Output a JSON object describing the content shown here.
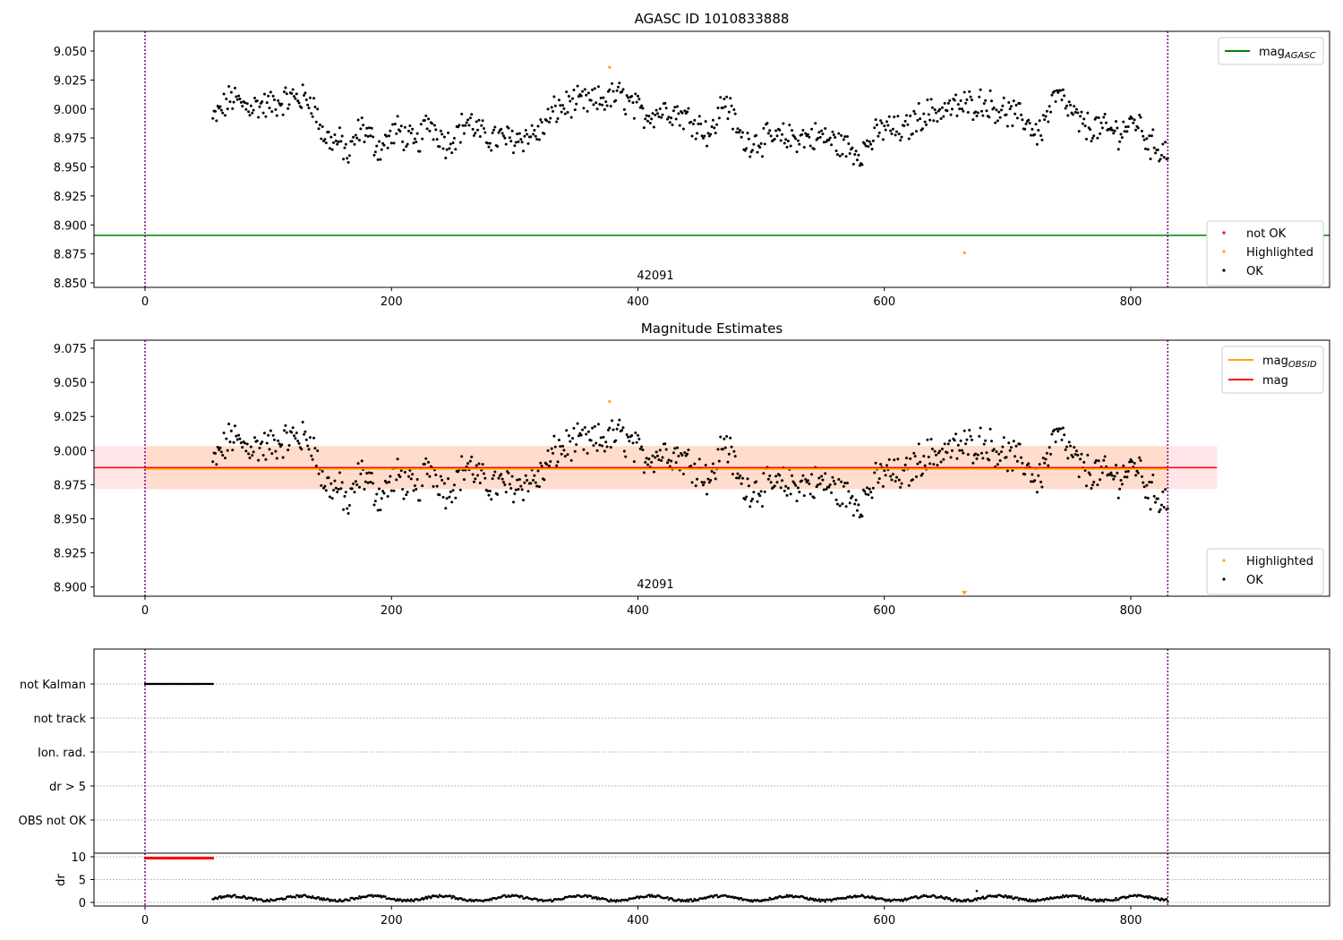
{
  "chart_data": [
    {
      "type": "scatter",
      "title": "AGASC ID 1010833888",
      "xlim": [
        -41,
        961
      ],
      "ylim": [
        8.846,
        9.067
      ],
      "xticks": [
        "0",
        "200",
        "400",
        "600",
        "800"
      ],
      "yticks": [
        "9.050",
        "9.025",
        "9.000",
        "8.975",
        "8.950",
        "8.925",
        "8.900",
        "8.875",
        "8.850"
      ],
      "mag_agasc": 8.891,
      "annotation": {
        "text": "42091",
        "x": 400
      },
      "obs_bounds": [
        0,
        830
      ],
      "legend_lines": [
        {
          "label_base": "mag",
          "label_sub": "AGASC",
          "color": "#008000"
        }
      ],
      "legend_points": [
        {
          "label": "not OK",
          "color": "#ff0000"
        },
        {
          "label": "Highlighted",
          "color": "#ffa500"
        },
        {
          "label": "OK",
          "color": "#000000"
        }
      ],
      "highlighted": [
        {
          "x": 377,
          "y": 9.036
        },
        {
          "x": 665,
          "y": 8.876
        }
      ],
      "ok_series_trend": {
        "x": [
          55,
          70,
          80,
          100,
          120,
          135,
          145,
          160,
          165,
          175,
          190,
          205,
          220,
          230,
          245,
          262,
          275,
          300,
          320,
          332,
          345,
          365,
          385,
          405,
          425,
          445,
          460,
          470,
          485,
          520,
          550,
          580,
          600,
          615,
          630,
          650,
          680,
          715,
          725,
          740,
          760,
          790,
          805,
          815,
          830
        ],
        "y": [
          8.99,
          9.01,
          9.003,
          9.003,
          9.01,
          9.008,
          8.976,
          8.97,
          8.958,
          8.985,
          8.966,
          8.982,
          8.968,
          8.99,
          8.97,
          8.99,
          8.976,
          8.974,
          8.98,
          8.998,
          9.005,
          9.006,
          9.012,
          8.995,
          9.0,
          8.99,
          8.978,
          9.01,
          8.972,
          8.975,
          8.976,
          8.962,
          8.985,
          8.98,
          8.995,
          9.0,
          9.006,
          8.99,
          8.978,
          9.013,
          8.986,
          8.98,
          8.99,
          8.97,
          8.963
        ]
      }
    },
    {
      "type": "scatter",
      "title": "Magnitude Estimates",
      "xlim": [
        -41,
        961
      ],
      "ylim": [
        8.893,
        9.081
      ],
      "xticks": [
        "0",
        "200",
        "400",
        "600",
        "800"
      ],
      "yticks": [
        "9.075",
        "9.050",
        "9.025",
        "9.000",
        "8.975",
        "8.950",
        "8.925",
        "8.900"
      ],
      "mag": 8.9875,
      "mag_obsid": 8.9872,
      "band": [
        8.9718,
        9.0033
      ],
      "band_outer_x": [
        -41,
        870
      ],
      "annotation": {
        "text": "42091",
        "x": 400
      },
      "legend_lines": [
        {
          "label_base": "mag",
          "label_sub": "OBSID",
          "color": "#ffa500"
        },
        {
          "label_base": "mag",
          "label_sub": "",
          "color": "#ff0000"
        }
      ],
      "legend_points": [
        {
          "label": "Highlighted",
          "color": "#ffa500"
        },
        {
          "label": "OK",
          "color": "#000000"
        }
      ]
    },
    {
      "type": "scatter",
      "categories": [
        "not Kalman",
        "not track",
        "Ion. rad.",
        "dr > 5",
        "OBS not OK"
      ],
      "flag_not_kalman_x": [
        0,
        55
      ],
      "dr_ylabel": "dr",
      "dr_yticks": [
        "10",
        "5",
        "0"
      ],
      "xticks": [
        "0",
        "200",
        "400",
        "600",
        "800"
      ],
      "dr_red_value": 9.7,
      "dr_ok_mean": 0.9,
      "dr_outlier": {
        "x": 675,
        "y": 2.5
      }
    }
  ],
  "colors": {
    "obs_line": "#800080",
    "band_outer": "#ffe4e8",
    "band_inner": "#ffdccb"
  }
}
